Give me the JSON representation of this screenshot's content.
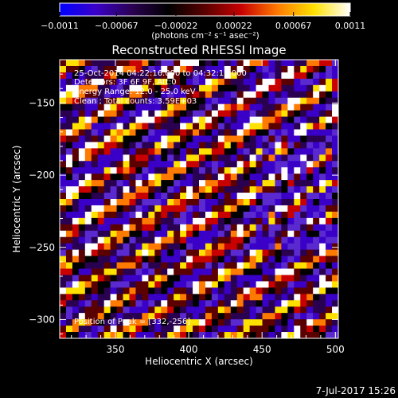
{
  "chart_data": {
    "type": "heatmap",
    "title": "Reconstructed RHESSI Image",
    "xlabel": "Heliocentric X (arcsec)",
    "ylabel": "Heliocentric Y (arcsec)",
    "xlim": [
      312,
      502
    ],
    "ylim": [
      -313,
      -120
    ],
    "x_ticks": [
      350,
      400,
      450,
      500
    ],
    "x_tick_labels": [
      "350",
      "400",
      "450",
      "500"
    ],
    "y_ticks": [
      -150,
      -200,
      -250,
      -300
    ],
    "y_tick_labels": [
      "−150",
      "−200",
      "−250",
      "−300"
    ],
    "colorbar": {
      "range": [
        -0.0011,
        0.0011
      ],
      "ticks": [
        -0.0011,
        -0.00067,
        -0.00022,
        0.00022,
        0.00067,
        0.0011
      ],
      "tick_labels": [
        "−0.0011",
        "−0.00067",
        "−0.00022",
        "0.00022",
        "0.00067",
        "0.0011"
      ],
      "units": "(photons cm⁻² s⁻¹ asec⁻²)",
      "colors": [
        "#0000ff",
        "#3a00c8",
        "#2a0050",
        "#000000",
        "#5a0000",
        "#c80000",
        "#ff7a00",
        "#ffe100",
        "#ffffff"
      ]
    },
    "annotations": [
      "25-Oct-2014 04:22:16.000 to 04:32:16.000",
      "Detectors: 3F 6F 9F, Att:0",
      "Energy Range: 12.0 - 25.0 keV",
      "Clean ;  Total counts: 3.59E+03"
    ],
    "peak_label": "Position of Peak = [332,-256]",
    "peak_position": [
      332,
      -256
    ],
    "pattern": "diagonal stripes",
    "grid": false
  },
  "footer": {
    "timestamp": "7-Jul-2017 15:26"
  }
}
